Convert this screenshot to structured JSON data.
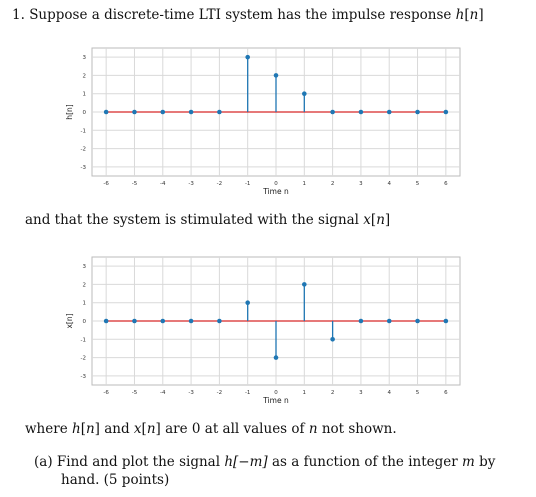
{
  "problem": {
    "number": "1.",
    "intro_before": "Suppose a discrete-time LTI system has the impulse response ",
    "h_symbol": "h",
    "index_open": "[",
    "n_symbol": "n",
    "index_close": "]",
    "middle_before": "and that the system is stimulated with the signal ",
    "x_symbol": "x",
    "where_a": "where ",
    "where_and": " and ",
    "where_b": " are 0 at all values of ",
    "where_c": " not shown.",
    "part_a_label": "(a)",
    "part_a_line1_a": "Find and plot the signal ",
    "part_a_hm": "h[−m]",
    "part_a_line1_b": " as a function of the integer ",
    "part_a_m": "m",
    "part_a_line1_c": " by",
    "part_a_line2": "hand. (5 points)"
  },
  "colors": {
    "stem": "#1f77b4",
    "baseline": "#d62728",
    "grid": "#d9d9d9"
  },
  "chart_data": [
    {
      "type": "stem",
      "xlabel": "Time n",
      "ylabel": "h[n]",
      "x": [
        -6,
        -5,
        -4,
        -3,
        -2,
        -1,
        0,
        1,
        2,
        3,
        4,
        5,
        6
      ],
      "values": [
        0,
        0,
        0,
        0,
        0,
        3,
        2,
        1,
        0,
        0,
        0,
        0,
        0
      ],
      "xlim": [
        -6.5,
        6.5
      ],
      "ylim": [
        -3.5,
        3.5
      ],
      "xticks": [
        "-6",
        "-5",
        "-4",
        "-3",
        "-2",
        "-1",
        "0",
        "1",
        "2",
        "3",
        "4",
        "5",
        "6"
      ],
      "yticks": [
        "-3",
        "-2",
        "-1",
        "0",
        "1",
        "2",
        "3"
      ],
      "grid": true
    },
    {
      "type": "stem",
      "xlabel": "Time n",
      "ylabel": "x[n]",
      "x": [
        -6,
        -5,
        -4,
        -3,
        -2,
        -1,
        0,
        1,
        2,
        3,
        4,
        5,
        6
      ],
      "values": [
        0,
        0,
        0,
        0,
        0,
        1,
        -2,
        2,
        -1,
        0,
        0,
        0,
        0
      ],
      "xlim": [
        -6.5,
        6.5
      ],
      "ylim": [
        -3.5,
        3.5
      ],
      "xticks": [
        "-6",
        "-5",
        "-4",
        "-3",
        "-2",
        "-1",
        "0",
        "1",
        "2",
        "3",
        "4",
        "5",
        "6"
      ],
      "yticks": [
        "-3",
        "-2",
        "-1",
        "0",
        "1",
        "2",
        "3"
      ],
      "grid": true
    }
  ]
}
